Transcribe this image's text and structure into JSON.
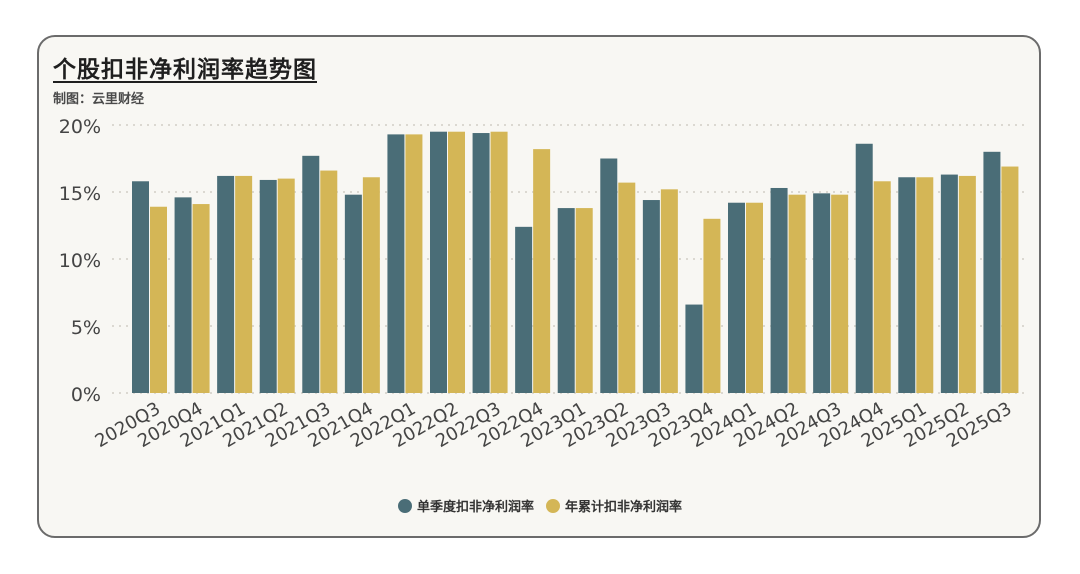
{
  "title": "个股扣非净利润率趋势图",
  "credit": "制图：云里财经",
  "colors": {
    "series0": "#4a6d77",
    "series1": "#d4b656"
  },
  "chart_data": {
    "type": "bar",
    "categories": [
      "2020Q3",
      "2020Q4",
      "2021Q1",
      "2021Q2",
      "2021Q3",
      "2021Q4",
      "2022Q1",
      "2022Q2",
      "2022Q3",
      "2022Q4",
      "2023Q1",
      "2023Q2",
      "2023Q3",
      "2023Q4",
      "2024Q1",
      "2024Q2",
      "2024Q3",
      "2024Q4",
      "2025Q1",
      "2025Q2",
      "2025Q3"
    ],
    "series": [
      {
        "name": "单季度扣非净利润率",
        "values": [
          15.8,
          14.6,
          16.2,
          15.9,
          17.7,
          14.8,
          19.3,
          19.5,
          19.4,
          12.4,
          13.8,
          17.5,
          14.4,
          6.6,
          14.2,
          15.3,
          14.9,
          18.6,
          16.1,
          16.3,
          18.0
        ]
      },
      {
        "name": "年累计扣非净利润率",
        "values": [
          13.9,
          14.1,
          16.2,
          16.0,
          16.6,
          16.1,
          19.3,
          19.5,
          19.5,
          18.2,
          13.8,
          15.7,
          15.2,
          13.0,
          14.2,
          14.8,
          14.8,
          15.8,
          16.1,
          16.2,
          16.9
        ]
      }
    ],
    "ylim": [
      0,
      20
    ],
    "yticks": [
      "0%",
      "5%",
      "10%",
      "15%",
      "20%"
    ],
    "grid": true,
    "legend": "bottom"
  }
}
